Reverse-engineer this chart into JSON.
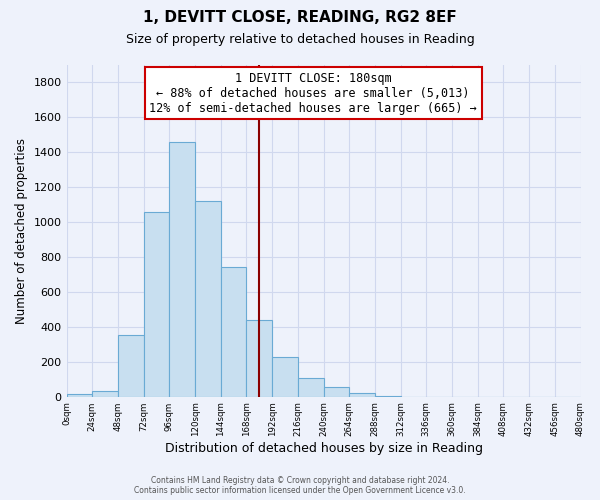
{
  "title": "1, DEVITT CLOSE, READING, RG2 8EF",
  "subtitle": "Size of property relative to detached houses in Reading",
  "xlabel": "Distribution of detached houses by size in Reading",
  "ylabel": "Number of detached properties",
  "bar_color": "#c8dff0",
  "bar_edge_color": "#6aaad4",
  "background_color": "#eef2fb",
  "grid_color": "#d0d8ee",
  "bins": [
    0,
    24,
    48,
    72,
    96,
    120,
    144,
    168,
    192,
    216,
    240,
    264,
    288,
    312,
    336,
    360,
    384,
    408,
    432,
    456,
    480
  ],
  "bar_heights": [
    15,
    30,
    355,
    1060,
    1460,
    1120,
    745,
    440,
    225,
    110,
    55,
    20,
    5,
    0,
    0,
    0,
    0,
    0,
    0,
    0
  ],
  "property_line_x": 180,
  "property_line_color": "#8b0000",
  "annotation_title": "1 DEVITT CLOSE: 180sqm",
  "annotation_line1": "← 88% of detached houses are smaller (5,013)",
  "annotation_line2": "12% of semi-detached houses are larger (665) →",
  "annotation_box_facecolor": "white",
  "annotation_box_edgecolor": "#cc0000",
  "ylim": [
    0,
    1900
  ],
  "xlim": [
    0,
    480
  ],
  "yticks": [
    0,
    200,
    400,
    600,
    800,
    1000,
    1200,
    1400,
    1600,
    1800
  ],
  "footnote1": "Contains HM Land Registry data © Crown copyright and database right 2024.",
  "footnote2": "Contains public sector information licensed under the Open Government Licence v3.0."
}
